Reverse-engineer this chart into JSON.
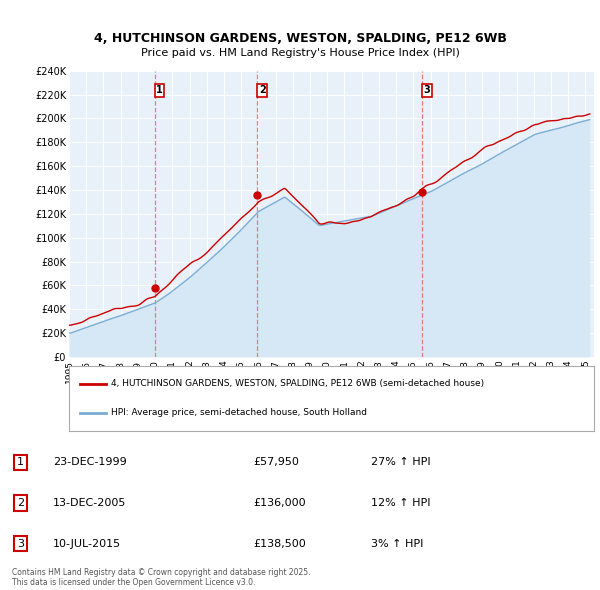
{
  "title": "4, HUTCHINSON GARDENS, WESTON, SPALDING, PE12 6WB",
  "subtitle": "Price paid vs. HM Land Registry's House Price Index (HPI)",
  "ylabel_ticks": [
    "£0",
    "£20K",
    "£40K",
    "£60K",
    "£80K",
    "£100K",
    "£120K",
    "£140K",
    "£160K",
    "£180K",
    "£200K",
    "£220K",
    "£240K"
  ],
  "ylim": [
    0,
    240000
  ],
  "ytick_vals": [
    0,
    20000,
    40000,
    60000,
    80000,
    100000,
    120000,
    140000,
    160000,
    180000,
    200000,
    220000,
    240000
  ],
  "sale_dates": [
    "1999-12-23",
    "2005-12-13",
    "2015-07-10"
  ],
  "sale_prices": [
    57950,
    136000,
    138500
  ],
  "sale_labels": [
    "1",
    "2",
    "3"
  ],
  "sale_hpi_pct": [
    "27% ↑ HPI",
    "12% ↑ HPI",
    "3% ↑ HPI"
  ],
  "sale_date_labels": [
    "23-DEC-1999",
    "13-DEC-2005",
    "10-JUL-2015"
  ],
  "sale_price_labels": [
    "£57,950",
    "£136,000",
    "£138,500"
  ],
  "line_color_property": "#cc0000",
  "line_color_hpi": "#7aadd4",
  "fill_color_hpi": "#d6e8f5",
  "vline_color": "#e87070",
  "background_color": "#e8f0fa",
  "legend_label_property": "4, HUTCHINSON GARDENS, WESTON, SPALDING, PE12 6WB (semi-detached house)",
  "legend_label_hpi": "HPI: Average price, semi-detached house, South Holland",
  "footer": "Contains HM Land Registry data © Crown copyright and database right 2025.\nThis data is licensed under the Open Government Licence v3.0.",
  "xstart_year": 1995,
  "xend_year": 2025
}
